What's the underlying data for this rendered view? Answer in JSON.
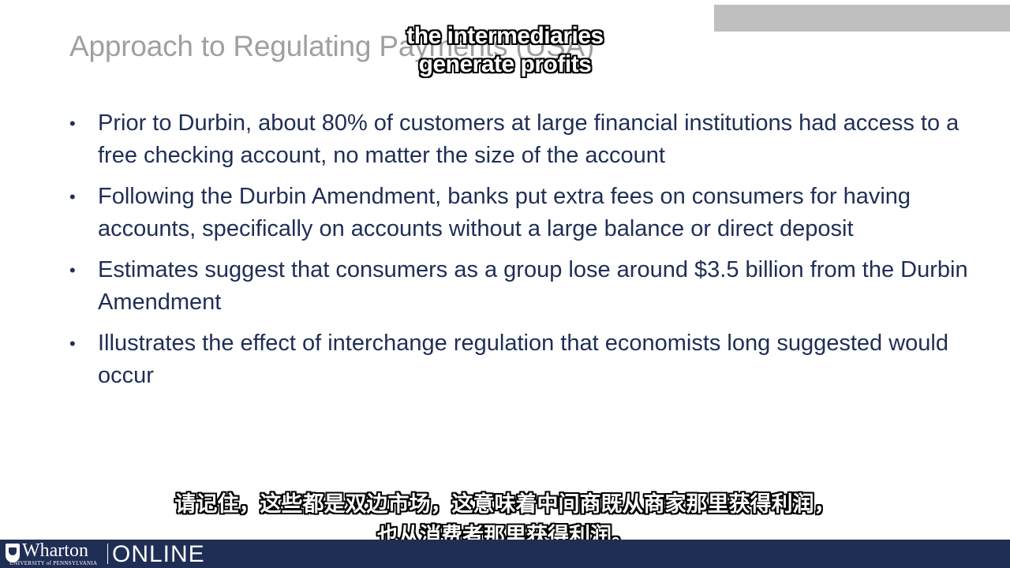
{
  "slide": {
    "title": "Approach to Regulating Payments (USA)",
    "bullets": [
      "Prior to Durbin, about 80% of customers at large financial institutions had access to a free checking account, no matter the size of the account",
      "Following the Durbin Amendment, banks put extra fees on consumers for having accounts, specifically on accounts without a large balance or direct deposit",
      "Estimates suggest that consumers as a group lose around $3.5 billion from the Durbin Amendment",
      "Illustrates the effect of interchange regulation that economists long suggested would occur"
    ],
    "bullet_marker": "•"
  },
  "subtitles": {
    "english_line1": "the intermediaries",
    "english_line2": "generate profits",
    "chinese_line1": "请记住，这些都是双边市场，这意味着中间商既从商家那里获得利润，",
    "chinese_line2": "也从消费者那里获得利润。"
  },
  "footer": {
    "brand": "Wharton",
    "brand_sub": "UNIVERSITY of PENNSYLVANIA",
    "online": "ONLINE"
  },
  "colors": {
    "title": "#a0a0a0",
    "body_text": "#1f2e55",
    "footer_bg": "#1f2e55",
    "top_bar": "#bfbfbf"
  }
}
